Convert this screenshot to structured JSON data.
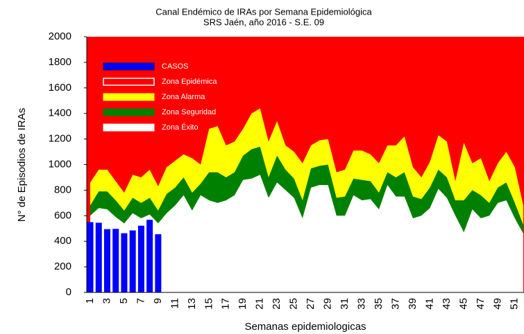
{
  "chart_data": {
    "type": "endemic-channel",
    "title": "Canal Endémico de IRAs por Semana Epidemiológica",
    "subtitle": "SRS Jaén, año 2016 - S.E. 09",
    "y_label": "N° de Episodios de IRAs",
    "x_label": "Semanas epidemiologicas",
    "categories": [
      1,
      null,
      3,
      null,
      5,
      null,
      7,
      null,
      9,
      null,
      11,
      null,
      13,
      null,
      15,
      null,
      17,
      null,
      19,
      null,
      21,
      null,
      23,
      null,
      25,
      null,
      27,
      null,
      29,
      null,
      31,
      null,
      33,
      null,
      35,
      null,
      37,
      null,
      39,
      null,
      41,
      null,
      43,
      null,
      45,
      null,
      47,
      null,
      49,
      null,
      51,
      null
    ],
    "ylim": [
      0,
      2000
    ],
    "yticks": [
      0,
      200,
      400,
      600,
      800,
      1000,
      1200,
      1400,
      1600,
      1800,
      2000
    ],
    "series": [
      {
        "name": "CASOS",
        "color": "#0000ff",
        "kind": "bar",
        "values": [
          550,
          545,
          495,
          497,
          463,
          485,
          522,
          568,
          455,
          null,
          null,
          null,
          null,
          null,
          null,
          null,
          null,
          null,
          null,
          null,
          null,
          null,
          null,
          null,
          null,
          null,
          null,
          null,
          null,
          null,
          null,
          null,
          null,
          null,
          null,
          null,
          null,
          null,
          null,
          null,
          null,
          null,
          null,
          null,
          null,
          null,
          null,
          null,
          null,
          null,
          null,
          null
        ]
      },
      {
        "name": "Zona Epidémica",
        "color": "#ff0000",
        "kind": "background"
      },
      {
        "name": "Zona Alarma",
        "color": "#ffff00",
        "kind": "area",
        "values": [
          860,
          960,
          960,
          870,
          780,
          920,
          900,
          960,
          830,
          980,
          1030,
          1080,
          1050,
          1000,
          1280,
          1300,
          1150,
          1180,
          1280,
          1400,
          1440,
          1180,
          1340,
          1150,
          1100,
          1010,
          1150,
          1190,
          1200,
          940,
          960,
          1110,
          1110,
          1080,
          1010,
          1150,
          1150,
          1220,
          980,
          900,
          1020,
          1230,
          1180,
          870,
          1170,
          1010,
          1050,
          870,
          1010,
          1100,
          980,
          680
        ]
      },
      {
        "name": "Zona Seguridad",
        "color": "#008000",
        "kind": "area",
        "values": [
          680,
          790,
          790,
          720,
          640,
          740,
          700,
          740,
          640,
          770,
          820,
          900,
          780,
          850,
          940,
          940,
          900,
          940,
          1070,
          1120,
          1140,
          900,
          1070,
          960,
          890,
          720,
          970,
          990,
          1000,
          740,
          750,
          890,
          880,
          870,
          780,
          940,
          900,
          940,
          750,
          730,
          820,
          960,
          900,
          720,
          720,
          800,
          760,
          700,
          820,
          860,
          700,
          530
        ]
      },
      {
        "name": "Zona Éxito",
        "color": "#ffffff",
        "kind": "area",
        "values": [
          600,
          660,
          650,
          590,
          540,
          620,
          580,
          610,
          540,
          620,
          680,
          760,
          640,
          760,
          720,
          700,
          720,
          760,
          880,
          890,
          920,
          740,
          860,
          800,
          740,
          580,
          820,
          840,
          840,
          600,
          600,
          760,
          720,
          730,
          650,
          840,
          750,
          750,
          580,
          600,
          660,
          810,
          740,
          600,
          470,
          650,
          580,
          600,
          700,
          720,
          580,
          460
        ]
      }
    ]
  }
}
